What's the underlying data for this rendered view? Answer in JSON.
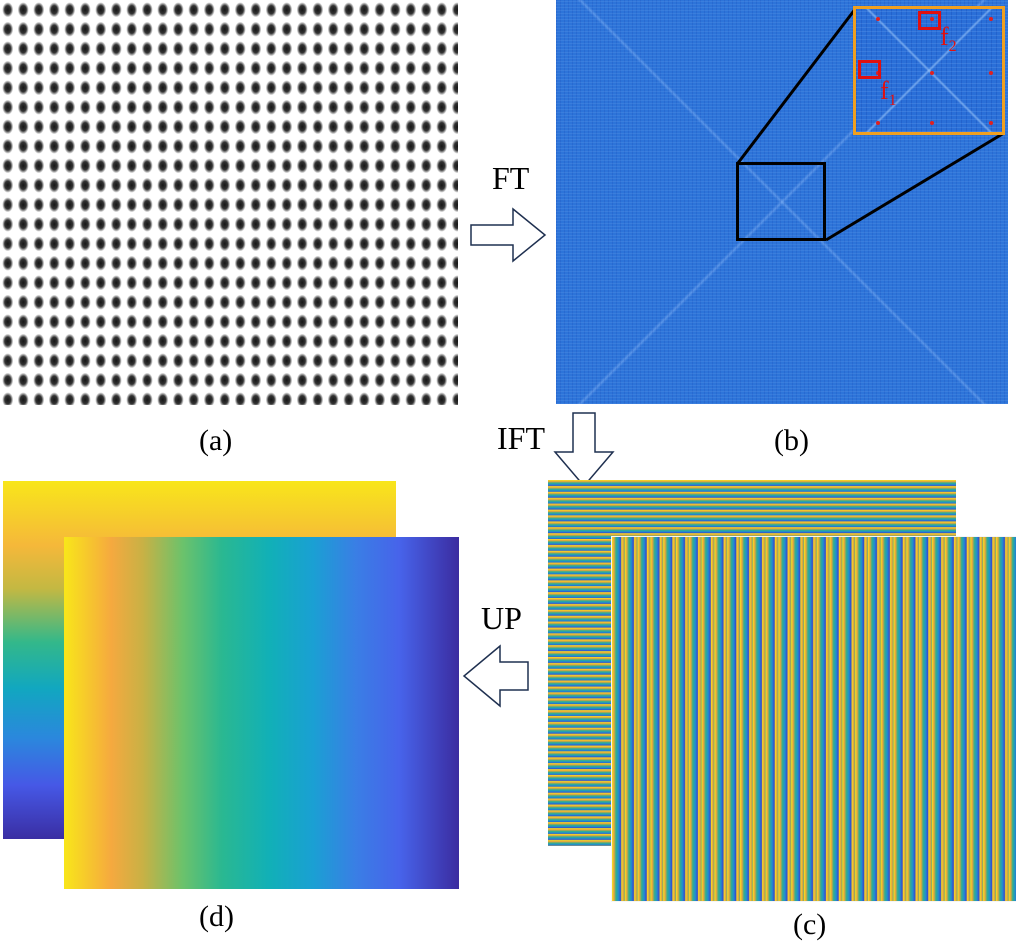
{
  "panels": {
    "a": {
      "label": "(a)"
    },
    "b": {
      "label": "(b)",
      "inset": {
        "f1": {
          "letter": "f",
          "sub": "1"
        },
        "f2": {
          "letter": "f",
          "sub": "2"
        }
      }
    },
    "c": {
      "label": "(c)"
    },
    "d": {
      "label": "(d)"
    }
  },
  "operations": {
    "ft": "FT",
    "ift": "IFT",
    "up": "UP"
  },
  "colors": {
    "spectrum_blue": "#2d74d9",
    "inset_border": "#f0a020",
    "frequency_marker": "#e01010",
    "arrow_stroke": "#1f3050"
  }
}
